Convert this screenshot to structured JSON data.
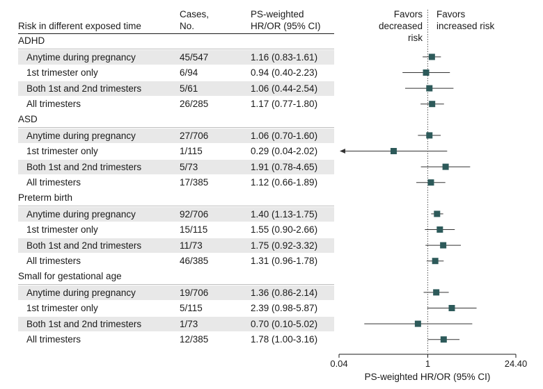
{
  "header": {
    "title": "Risk in different exposed time",
    "cases_line1": "Cases,",
    "cases_line2": "No.",
    "hr_line1": "PS-weighted",
    "hr_line2": "HR/OR (95% CI)",
    "favors_left_line1": "Favors",
    "favors_left_line2": "decreased risk",
    "favors_right_line1": "Favors",
    "favors_right_line2": "increased risk"
  },
  "chart_data": {
    "type": "forest",
    "x_scale": "log",
    "xlim": [
      0.04,
      24.4
    ],
    "x_ticks": [
      "0.04",
      "1",
      "24.40"
    ],
    "xlabel": "PS-weighted HR/OR (95% CI)",
    "reference_line": 1,
    "marker_color": "#2d5a5a",
    "groups": [
      {
        "name": "ADHD",
        "rows": [
          {
            "label": "Anytime during pregnancy",
            "cases": "45/547",
            "ci_text": "1.16 (0.83-1.61)",
            "est": 1.16,
            "lo": 0.83,
            "hi": 1.61
          },
          {
            "label": "1st trimester only",
            "cases": "6/94",
            "ci_text": "0.94 (0.40-2.23)",
            "est": 0.94,
            "lo": 0.4,
            "hi": 2.23
          },
          {
            "label": "Both 1st and 2nd trimesters",
            "cases": "5/61",
            "ci_text": "1.06 (0.44-2.54)",
            "est": 1.06,
            "lo": 0.44,
            "hi": 2.54
          },
          {
            "label": "All trimesters",
            "cases": "26/285",
            "ci_text": "1.17 (0.77-1.80)",
            "est": 1.17,
            "lo": 0.77,
            "hi": 1.8
          }
        ]
      },
      {
        "name": "ASD",
        "rows": [
          {
            "label": "Anytime during pregnancy",
            "cases": "27/706",
            "ci_text": "1.06 (0.70-1.60)",
            "est": 1.06,
            "lo": 0.7,
            "hi": 1.6
          },
          {
            "label": "1st trimester only",
            "cases": "1/115",
            "ci_text": "0.29 (0.04-2.02)",
            "est": 0.29,
            "lo": 0.04,
            "hi": 2.02,
            "arrow_left": true
          },
          {
            "label": "Both 1st and 2nd trimesters",
            "cases": "5/73",
            "ci_text": "1.91 (0.78-4.65)",
            "est": 1.91,
            "lo": 0.78,
            "hi": 4.65
          },
          {
            "label": "All trimesters",
            "cases": "17/385",
            "ci_text": "1.12 (0.66-1.89)",
            "est": 1.12,
            "lo": 0.66,
            "hi": 1.89
          }
        ]
      },
      {
        "name": "Preterm birth",
        "rows": [
          {
            "label": "Anytime during pregnancy",
            "cases": "92/706",
            "ci_text": "1.40 (1.13-1.75)",
            "est": 1.4,
            "lo": 1.13,
            "hi": 1.75
          },
          {
            "label": "1st trimester only",
            "cases": "15/115",
            "ci_text": "1.55 (0.90-2.66)",
            "est": 1.55,
            "lo": 0.9,
            "hi": 2.66
          },
          {
            "label": "Both 1st and 2nd trimesters",
            "cases": "11/73",
            "ci_text": "1.75 (0.92-3.32)",
            "est": 1.75,
            "lo": 0.92,
            "hi": 3.32
          },
          {
            "label": "All trimesters",
            "cases": "46/385",
            "ci_text": "1.31 (0.96-1.78)",
            "est": 1.31,
            "lo": 0.96,
            "hi": 1.78
          }
        ]
      },
      {
        "name": "Small for gestational age",
        "rows": [
          {
            "label": "Anytime during pregnancy",
            "cases": "19/706",
            "ci_text": "1.36 (0.86-2.14)",
            "est": 1.36,
            "lo": 0.86,
            "hi": 2.14
          },
          {
            "label": "1st trimester only",
            "cases": "5/115",
            "ci_text": "2.39 (0.98-5.87)",
            "est": 2.39,
            "lo": 0.98,
            "hi": 5.87
          },
          {
            "label": "Both 1st and 2nd trimesters",
            "cases": "1/73",
            "ci_text": "0.70 (0.10-5.02)",
            "est": 0.7,
            "lo": 0.1,
            "hi": 5.02
          },
          {
            "label": "All trimesters",
            "cases": "12/385",
            "ci_text": "1.78 (1.00-3.16)",
            "est": 1.78,
            "lo": 1.0,
            "hi": 3.16
          }
        ]
      }
    ]
  }
}
